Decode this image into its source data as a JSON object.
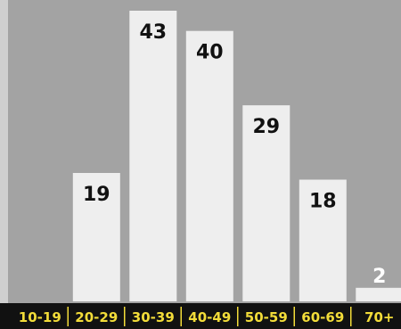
{
  "chart_data": {
    "type": "bar",
    "categories": [
      "10-19",
      "20-29",
      "30-39",
      "40-49",
      "50-59",
      "60-69",
      "70+"
    ],
    "values": [
      0,
      19,
      43,
      40,
      29,
      18,
      2
    ],
    "data_labels": [
      "",
      "19",
      "43",
      "40",
      "29",
      "18",
      "2"
    ],
    "title": "",
    "xlabel": "",
    "ylabel": "",
    "ylim": [
      0,
      43
    ],
    "grid": false,
    "legend": "none",
    "colors": {
      "background": "#a3a3a3",
      "left_band": "#cfcfcf",
      "bar": "#eeeeee",
      "bar_label": "#111111",
      "small_bar_label": "#ffffff",
      "category_band": "#111111",
      "category_label": "#f2dc39"
    }
  }
}
